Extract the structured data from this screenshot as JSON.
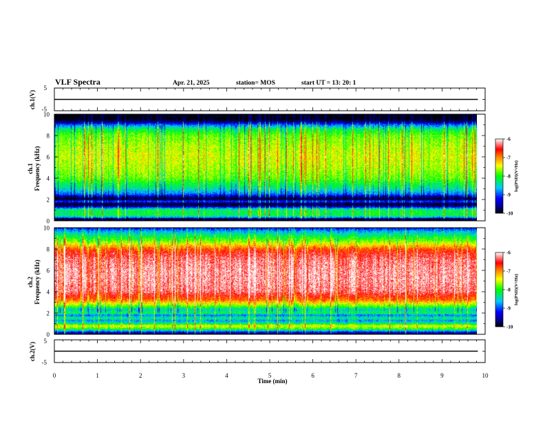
{
  "header": {
    "title": "VLF Spectra",
    "date": "Apr. 21, 2025",
    "station": "station= MOS",
    "start": "start  UT  =    13: 20: 1"
  },
  "chart_data": [
    {
      "type": "line",
      "name": "ch1-waveform",
      "ylabel": "ch.1(V)",
      "ylim": [
        -5,
        5
      ],
      "yticks": [
        "5",
        "-5"
      ],
      "xlim": [
        0,
        10
      ],
      "x": [
        0,
        9.83
      ],
      "y": [
        0,
        0
      ]
    },
    {
      "type": "heatmap",
      "name": "ch1-spectrogram",
      "ylabel": "ch.1\nFrequency (kHz)",
      "ylabel_lines": [
        "ch.1",
        "Frequency (kHz)"
      ],
      "ylim": [
        0,
        10
      ],
      "yticks": [
        "0",
        "2",
        "4",
        "6",
        "8",
        "10"
      ],
      "xlim": [
        0,
        9.83
      ],
      "colorbar": {
        "min": -10,
        "max": -6,
        "ticks": [
          "-6",
          "-7",
          "-8",
          "-9",
          "-10"
        ],
        "label": "log(PSD)(V²/Hz)"
      },
      "profile_freq_khz": [
        0.0,
        0.2,
        0.3,
        0.5,
        1.0,
        1.2,
        1.35,
        1.6,
        1.7,
        1.85,
        2.0,
        2.2,
        2.5,
        3.0,
        3.5,
        4.0,
        5.0,
        6.0,
        7.0,
        8.0,
        8.6,
        9.0,
        9.2,
        9.5,
        10.0
      ],
      "profile_log_psd": [
        -10.0,
        -9.8,
        -8.8,
        -8.2,
        -8.2,
        -8.8,
        -9.6,
        -10.0,
        -9.4,
        -9.1,
        -9.9,
        -9.7,
        -8.9,
        -8.4,
        -8.1,
        -7.8,
        -7.6,
        -7.5,
        -7.6,
        -7.8,
        -8.2,
        -8.9,
        -9.5,
        -10.0,
        -10.0
      ]
    },
    {
      "type": "heatmap",
      "name": "ch2-spectrogram",
      "ylabel": "ch.2\nFrequency (kHz)",
      "ylabel_lines": [
        "ch.2",
        "Frequency (kHz)"
      ],
      "ylim": [
        0,
        10
      ],
      "yticks": [
        "0",
        "2",
        "4",
        "6",
        "8",
        "10"
      ],
      "xlim": [
        0,
        9.83
      ],
      "colorbar": {
        "min": -10,
        "max": -6,
        "ticks": [
          "-6",
          "-7",
          "-8",
          "-9",
          "-10"
        ],
        "label": "log(PSD)(V²/Hz)"
      },
      "profile_freq_khz": [
        0.0,
        0.2,
        0.5,
        0.8,
        1.0,
        1.3,
        1.5,
        1.8,
        2.0,
        2.3,
        2.6,
        2.9,
        3.2,
        3.6,
        4.0,
        5.0,
        6.0,
        7.0,
        7.6,
        8.0,
        8.4,
        8.8,
        9.2,
        9.6,
        10.0
      ],
      "profile_log_psd": [
        -10.0,
        -9.2,
        -8.0,
        -7.4,
        -8.2,
        -8.8,
        -8.2,
        -8.9,
        -8.1,
        -8.5,
        -7.9,
        -7.4,
        -6.9,
        -6.6,
        -6.3,
        -6.2,
        -6.2,
        -6.3,
        -6.5,
        -6.8,
        -7.3,
        -7.8,
        -8.2,
        -8.6,
        -9.2
      ]
    },
    {
      "type": "line",
      "name": "ch2-waveform",
      "ylabel": "ch.2(V)",
      "ylim": [
        -5,
        5
      ],
      "yticks": [
        "5",
        "-5"
      ],
      "xlim": [
        0,
        10
      ],
      "x": [
        0,
        9.83
      ],
      "y": [
        0,
        0
      ]
    }
  ],
  "x_axis": {
    "label": "Time (min)",
    "range": [
      0,
      10
    ],
    "ticks": [
      "0",
      "1",
      "2",
      "3",
      "4",
      "5",
      "6",
      "7",
      "8",
      "9",
      "10"
    ]
  }
}
